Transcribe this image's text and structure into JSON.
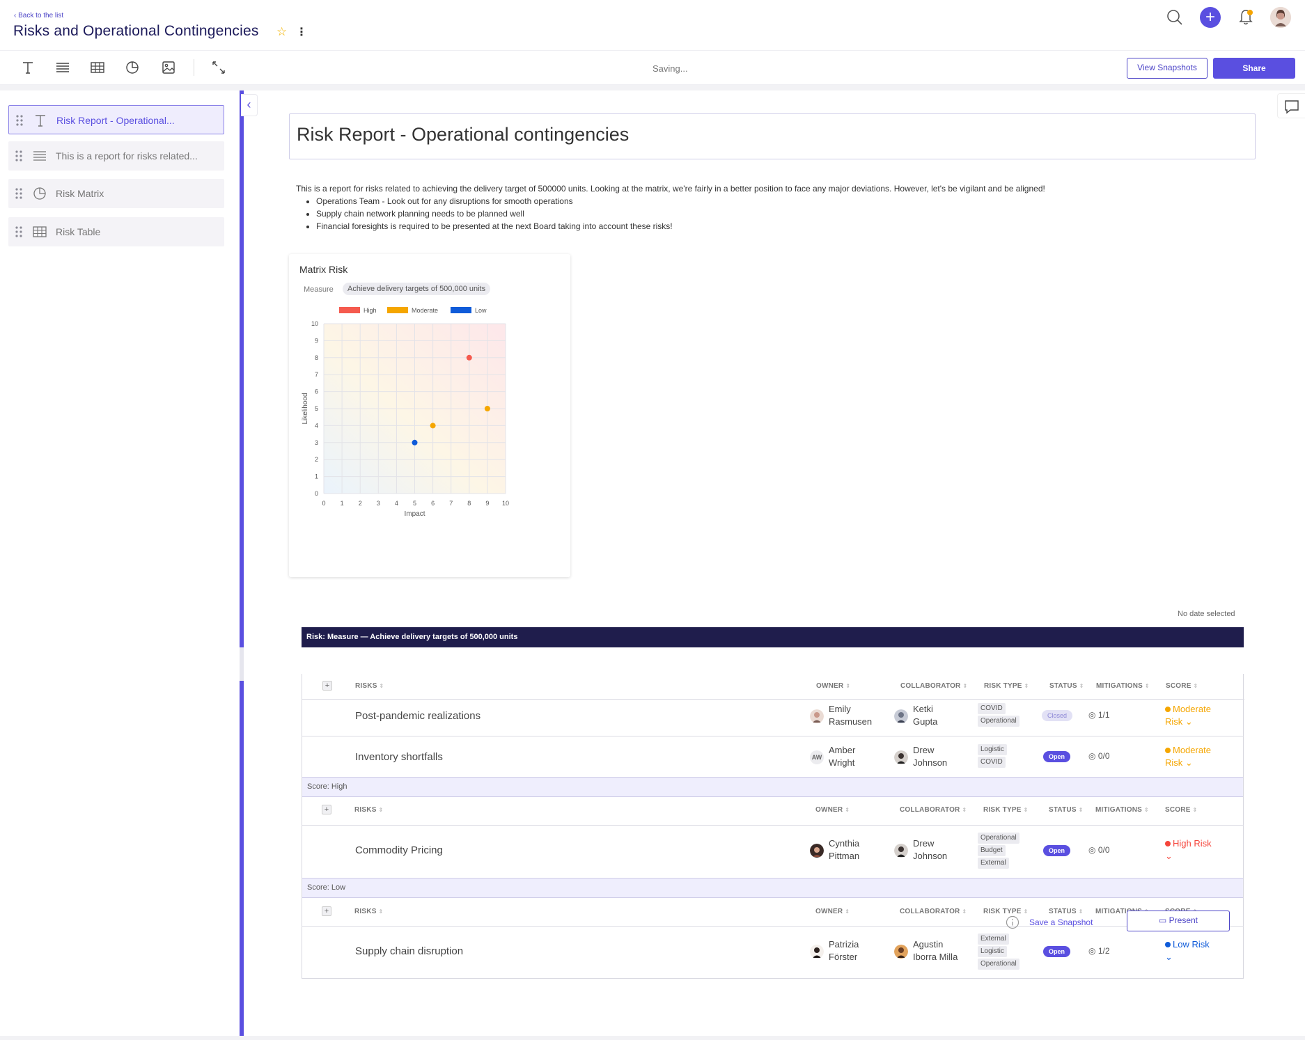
{
  "header": {
    "back_label": "‹ Back to the list",
    "title": "Risks and Operational Contingencies"
  },
  "toolbar": {
    "saving_text": "Saving...",
    "view_snapshots_label": "View Snapshots",
    "share_label": "Share"
  },
  "sidebar": {
    "items": [
      {
        "label": "Risk Report - Operational...",
        "icon": "text-icon"
      },
      {
        "label": "This is a report for risks related...",
        "icon": "paragraph-icon"
      },
      {
        "label": "Risk Matrix",
        "icon": "chart-icon"
      },
      {
        "label": "Risk Table",
        "icon": "table-icon"
      }
    ]
  },
  "report": {
    "title": "Risk Report - Operational contingencies",
    "intro": "This is a report for risks related to achieving the delivery target of 500000 units. Looking at the matrix, we're fairly in a better position to face any major deviations. However, let's be vigilant and be aligned!",
    "bullets": [
      "Operations Team - Look out for any disruptions for smooth operations",
      "Supply chain network planning needs to be planned well",
      "Financial foresights is required to be presented at the next Board taking into account these risks!"
    ]
  },
  "chart_card": {
    "title": "Matrix Risk",
    "measure_label": "Measure",
    "measure_value": "Achieve delivery targets of 500,000 units"
  },
  "chart_data": {
    "type": "scatter",
    "xlabel": "Impact",
    "ylabel": "Likelihood",
    "xlim": [
      0,
      10
    ],
    "ylim": [
      0,
      10
    ],
    "xticks": [
      0,
      1,
      2,
      3,
      4,
      5,
      6,
      7,
      8,
      9,
      10
    ],
    "yticks": [
      0,
      1,
      2,
      3,
      4,
      5,
      6,
      7,
      8,
      9,
      10
    ],
    "grid": true,
    "legend_placement": "top-center",
    "series": [
      {
        "name": "High",
        "color": "#f55a4e",
        "points": [
          {
            "x": 8,
            "y": 8
          }
        ]
      },
      {
        "name": "Moderate",
        "color": "#f5a600",
        "points": [
          {
            "x": 6,
            "y": 4
          },
          {
            "x": 9,
            "y": 5
          }
        ]
      },
      {
        "name": "Low",
        "color": "#0f5bd9",
        "points": [
          {
            "x": 5,
            "y": 3
          }
        ]
      }
    ]
  },
  "table": {
    "no_date_text": "No date selected",
    "banner": "Risk: Measure — Achieve delivery targets of 500,000 units",
    "columns": [
      "RISKS",
      "OWNER",
      "COLLABORATOR",
      "RISK TYPE",
      "STATUS",
      "MITIGATIONS",
      "SCORE"
    ],
    "groups": [
      {
        "label_prefix": "",
        "label_value": "",
        "rows": [
          {
            "risk": "Post-pandemic realizations",
            "owner": [
              "Emily",
              "Rasmusen"
            ],
            "collaborator": [
              "Ketki",
              "Gupta"
            ],
            "types": [
              "COVID",
              "Operational"
            ],
            "status": "Closed",
            "mitigations": "1/1",
            "score": [
              "Moderate",
              "Risk"
            ],
            "score_color": "#f5a600"
          },
          {
            "risk": "Inventory shortfalls",
            "owner": [
              "Amber",
              "Wright"
            ],
            "owner_initials": "AW",
            "collaborator": [
              "Drew",
              "Johnson"
            ],
            "types": [
              "Logistic",
              "COVID"
            ],
            "status": "Open",
            "mitigations": "0/0",
            "score": [
              "Moderate",
              "Risk"
            ],
            "score_color": "#f5a600"
          }
        ]
      },
      {
        "label_prefix": "Score:",
        "label_value": "High",
        "rows": [
          {
            "risk": "Commodity Pricing",
            "owner": [
              "Cynthia",
              "Pittman"
            ],
            "collaborator": [
              "Drew",
              "Johnson"
            ],
            "types": [
              "Operational",
              "Budget",
              "External"
            ],
            "status": "Open",
            "mitigations": "0/0",
            "score": [
              "High Risk",
              ""
            ],
            "score_color": "#f5453b"
          }
        ]
      },
      {
        "label_prefix": "Score:",
        "label_value": "Low",
        "rows": [
          {
            "risk": "Supply chain disruption",
            "owner": [
              "Patrizia",
              "Förster"
            ],
            "collaborator": [
              "Agustin",
              "Iborra Milla"
            ],
            "types": [
              "External",
              "Logistic",
              "Operational"
            ],
            "status": "Open",
            "mitigations": "1/2",
            "score": [
              "Low Risk",
              ""
            ],
            "score_color": "#0f5bd9"
          }
        ]
      }
    ]
  },
  "footer": {
    "save_snapshot_label": "Save a Snapshot",
    "present_label": "Present"
  },
  "colors": {
    "accent": "#5a4fe0",
    "banner": "#1f1d4c"
  }
}
